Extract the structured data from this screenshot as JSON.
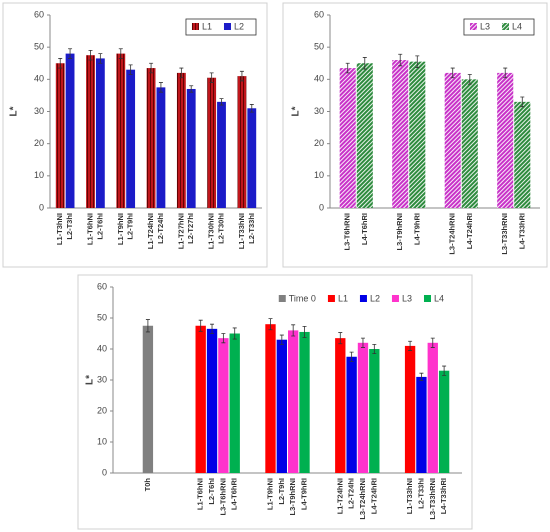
{
  "chart_data": [
    {
      "type": "bar",
      "ylabel": "L*",
      "ylim": [
        0,
        60
      ],
      "yticks": [
        0,
        10,
        20,
        30,
        40,
        50,
        60
      ],
      "legend": "upper right",
      "legend_frame": true,
      "series": [
        {
          "name": "L1",
          "color": "#c0161c",
          "hatch": "vertical",
          "values": [
            45,
            47.5,
            48,
            43.5,
            42,
            40.5,
            41
          ],
          "errors": [
            1.5,
            1.5,
            1.5,
            1.5,
            1.5,
            1.5,
            1.5
          ],
          "labels": [
            "L1-T3hNI",
            "L1-T6hNI",
            "L1-T9hNI",
            "L1-T24hNI",
            "L1-T27hNI",
            "L1-T30hNI",
            "L1-T33hNI"
          ]
        },
        {
          "name": "L2",
          "color": "#1b1bc8",
          "hatch": "none",
          "values": [
            48,
            46.5,
            43,
            37.5,
            37,
            33,
            31
          ],
          "errors": [
            1.5,
            1.5,
            1.5,
            1.5,
            1,
            1,
            1.2
          ],
          "labels": [
            "L2-T3hI",
            "L2-T6hI",
            "L2-T9hI",
            "L2-T24hI",
            "L2-T27hI",
            "L2-T30hI",
            "L2-T33hI"
          ]
        }
      ]
    },
    {
      "type": "bar",
      "ylabel": "L*",
      "ylim": [
        0,
        60
      ],
      "yticks": [
        0,
        10,
        20,
        30,
        40,
        50,
        60
      ],
      "legend": "upper right",
      "legend_frame": true,
      "series": [
        {
          "name": "L3",
          "color": "#c832c8",
          "hatch": "diagonal",
          "values": [
            43.5,
            46,
            42,
            42
          ],
          "errors": [
            1.5,
            1.8,
            1.5,
            1.5
          ],
          "labels": [
            "L3-T6hRNI",
            "L3-T9hRNI",
            "L3-T24hRNI",
            "L3-T33hRNI"
          ]
        },
        {
          "name": "L4",
          "color": "#2e8b3e",
          "hatch": "diagonal",
          "values": [
            45,
            45.5,
            40,
            33
          ],
          "errors": [
            1.8,
            1.8,
            1.5,
            1.5
          ],
          "labels": [
            "L4-T6hRI",
            "L4-T9hRI",
            "L4-T24hRI",
            "L4-T33hRI"
          ]
        }
      ]
    },
    {
      "type": "bar",
      "ylabel": "L*",
      "ylim": [
        0,
        60
      ],
      "yticks": [
        0,
        10,
        20,
        30,
        40,
        50,
        60
      ],
      "legend": "upper right",
      "legend_frame": false,
      "series": [
        {
          "name": "Time 0",
          "color": "#808080",
          "hatch": "none",
          "values": [
            47.5,
            null,
            null,
            null,
            null
          ],
          "errors": [
            2,
            null,
            null,
            null,
            null
          ],
          "labels": [
            "T0h",
            null,
            null,
            null,
            null
          ]
        },
        {
          "name": "L1",
          "color": "#ff0000",
          "hatch": "none",
          "values": [
            null,
            47.5,
            48,
            43.5,
            41
          ],
          "errors": [
            null,
            1.8,
            1.8,
            1.8,
            1.5
          ],
          "labels": [
            null,
            "L1-T6hNI",
            "L1-T9hNI",
            "L1-T24hNI",
            "L1-T33hNI"
          ]
        },
        {
          "name": "L2",
          "color": "#0000e6",
          "hatch": "none",
          "values": [
            null,
            46.5,
            43,
            37.5,
            31
          ],
          "errors": [
            null,
            1.5,
            1.5,
            1.5,
            1.2
          ],
          "labels": [
            null,
            "L2-T6hI",
            "L2-T9hI",
            "L2-T24hI",
            "L2-T33hI"
          ]
        },
        {
          "name": "L3",
          "color": "#ff33cc",
          "hatch": "none",
          "values": [
            null,
            43.5,
            46,
            42,
            42
          ],
          "errors": [
            null,
            1.5,
            1.8,
            1.5,
            1.5
          ],
          "labels": [
            null,
            "L3-T6hRNI",
            "L3-T9hRNI",
            "L3-T24hRNI",
            "L3-T33hRNI"
          ]
        },
        {
          "name": "L4",
          "color": "#00b050",
          "hatch": "none",
          "values": [
            null,
            45,
            45.5,
            40,
            33
          ],
          "errors": [
            null,
            1.8,
            1.8,
            1.5,
            1.5
          ],
          "labels": [
            null,
            "L4-T6hRI",
            "L4-T9hRI",
            "L4-T24hRI",
            "L4-T33hRI"
          ]
        }
      ]
    }
  ]
}
